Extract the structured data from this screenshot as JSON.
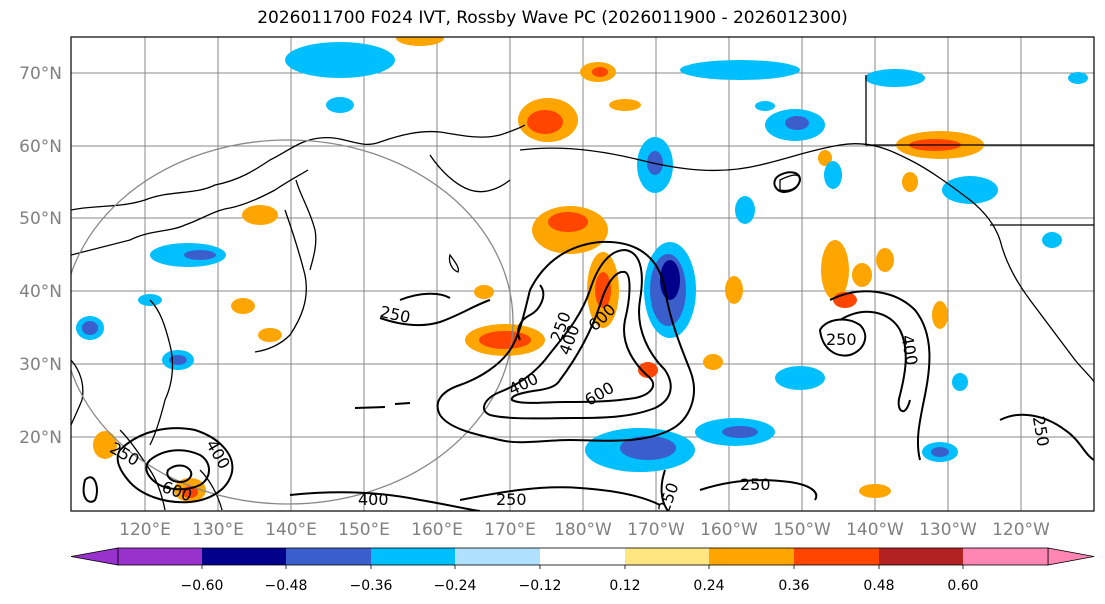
{
  "title": "2026011700 F024 IVT, Rossby Wave PC (2026011900 - 2026012300)",
  "lat_ticks": [
    "70°N",
    "60°N",
    "50°N",
    "40°N",
    "30°N",
    "20°N"
  ],
  "lon_ticks": [
    "120°E",
    "130°E",
    "140°E",
    "150°E",
    "160°E",
    "170°E",
    "180°W",
    "170°W",
    "160°W",
    "150°W",
    "140°W",
    "130°W",
    "120°W"
  ],
  "colorbar": {
    "colors": [
      "#9932cc",
      "#00008b",
      "#3a5fcd",
      "#00bfff",
      "#b0e2ff",
      "#ffffff",
      "#ffe680",
      "#ffa500",
      "#ff4500",
      "#b22222",
      "#ff85b3"
    ],
    "tick_labels": [
      "−0.60",
      "−0.48",
      "−0.36",
      "−0.24",
      "−0.12",
      "0.12",
      "0.24",
      "0.36",
      "0.48",
      "0.60"
    ]
  },
  "contour_labels": [
    "250",
    "400",
    "600",
    "250",
    "400",
    "600",
    "250",
    "400",
    "250",
    "250",
    "400",
    "250",
    "250",
    "400",
    "600",
    "250"
  ],
  "colors": {
    "contour": "#000000",
    "coast": "#000000",
    "grid": "#888888",
    "circle": "#888888"
  }
}
